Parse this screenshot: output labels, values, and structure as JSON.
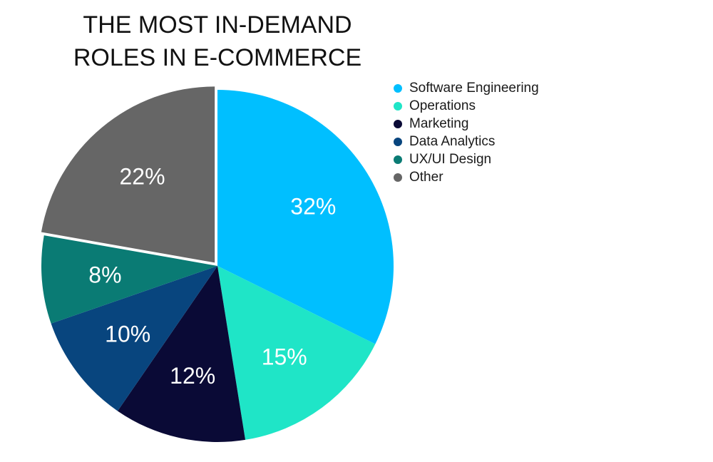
{
  "chart_data": {
    "type": "pie",
    "title_lines": [
      "THE MOST IN-DEMAND",
      "ROLES IN E-COMMERCE"
    ],
    "legend_position": "right",
    "slices": [
      {
        "label": "Software Engineering",
        "value": 32,
        "display": "32%",
        "color": "#00BFFF"
      },
      {
        "label": "Operations",
        "value": 15,
        "display": "15%",
        "color": "#1FE5C7"
      },
      {
        "label": "Marketing",
        "value": 12,
        "display": "12%",
        "color": "#0A0A36"
      },
      {
        "label": "Data Analytics",
        "value": 10,
        "display": "10%",
        "color": "#08457E"
      },
      {
        "label": "UX/UI Design",
        "value": 8,
        "display": "8%",
        "color": "#0A7B74"
      },
      {
        "label": "Other",
        "value": 22,
        "display": "22%",
        "color": "#666666",
        "exploded": true
      }
    ]
  }
}
